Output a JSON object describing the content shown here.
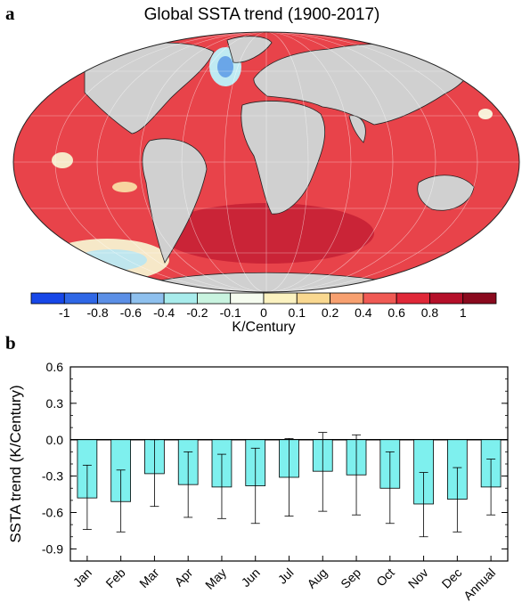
{
  "panel_a": {
    "letter": "a",
    "title": "Global SSTA trend (1900-2017)",
    "colorbar": {
      "labels": [
        "-1",
        "-0.8",
        "-0.6",
        "-0.4",
        "-0.2",
        "-0.1",
        "0",
        "0.1",
        "0.2",
        "0.4",
        "0.6",
        "0.8",
        "1"
      ],
      "colors": [
        "#1747e8",
        "#2f67e6",
        "#5b8fe6",
        "#8ec0ee",
        "#a8ecec",
        "#c9f4e0",
        "#f6fcf0",
        "#fbf2c0",
        "#f9d890",
        "#f7a070",
        "#f05a54",
        "#e02838",
        "#b5102a",
        "#8a0a1e"
      ],
      "unit": "K/Century"
    }
  },
  "panel_b": {
    "letter": "b",
    "chart_data": {
      "type": "bar",
      "categories": [
        "Jan",
        "Feb",
        "Mar",
        "Apr",
        "May",
        "Jun",
        "Jul",
        "Aug",
        "Sep",
        "Oct",
        "Nov",
        "Dec",
        "Annual"
      ],
      "values": [
        -0.48,
        -0.51,
        -0.28,
        -0.37,
        -0.39,
        -0.38,
        -0.31,
        -0.26,
        -0.29,
        -0.4,
        -0.53,
        -0.49,
        -0.39
      ],
      "error_low": [
        -0.74,
        -0.76,
        -0.55,
        -0.64,
        -0.65,
        -0.69,
        -0.63,
        -0.59,
        -0.62,
        -0.69,
        -0.8,
        -0.76,
        -0.62
      ],
      "error_high": [
        -0.21,
        -0.25,
        0.0,
        -0.1,
        -0.12,
        -0.07,
        0.01,
        0.06,
        0.04,
        -0.1,
        -0.27,
        -0.23,
        -0.16
      ],
      "ylabel": "SSTA trend (K/Century)",
      "ylim": [
        -1.0,
        0.6
      ],
      "yticks": [
        "0.6",
        "0.3",
        "0.0",
        "-0.3",
        "-0.6",
        "-0.9"
      ],
      "bar_color": "#7ef0ee",
      "grid": false
    }
  }
}
